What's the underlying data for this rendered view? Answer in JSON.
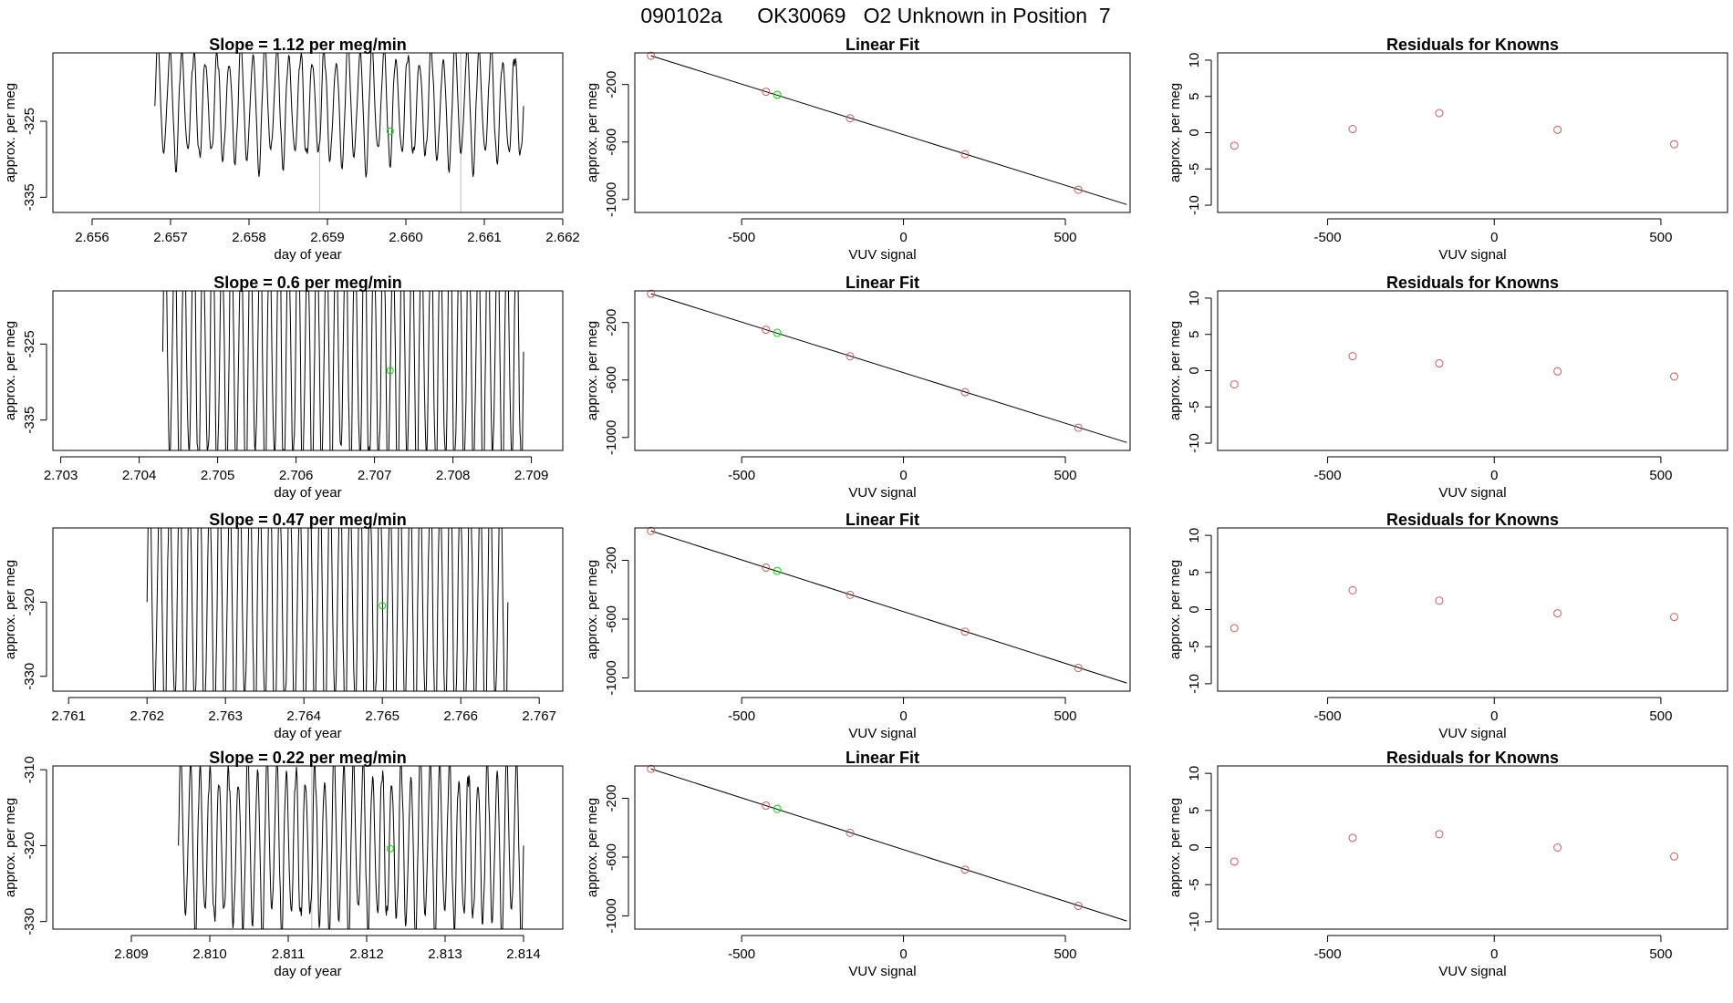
{
  "page_title": "090102a      OK30069   O2 Unknown in Position  7",
  "colors": {
    "line": "#000000",
    "known": "#cd5c5c",
    "unknown": "#00dd00",
    "frame": "#000000"
  },
  "chart_data": [
    {
      "row": 1,
      "ts": {
        "type": "line",
        "title": "Slope =  1.12  per meg/min",
        "xlabel": "day of year",
        "ylabel": "approx. per meg",
        "xlim": [
          2.6555,
          2.662
        ],
        "ylim": [
          -337,
          -316
        ],
        "xticks": [
          "2.656",
          "2.657",
          "2.658",
          "2.659",
          "2.660",
          "2.661",
          "2.662"
        ],
        "xtick_values": [
          2.656,
          2.657,
          2.658,
          2.659,
          2.66,
          2.661,
          2.662
        ],
        "yticks": [
          "-325",
          "-335"
        ],
        "ytick_values": [
          -325,
          -335
        ],
        "x_start": 2.6568,
        "x_end": 2.6615,
        "mean": -323,
        "amp": 9.5,
        "cycles": 31,
        "vlines": [
          2.6589,
          2.6607
        ],
        "unknown_point": [
          2.6598,
          -326.3
        ]
      },
      "fit": {
        "type": "scatter",
        "title": "Linear Fit",
        "xlabel": "VUV signal",
        "ylabel": "approx. per meg",
        "xlim": [
          -830,
          700
        ],
        "ylim": [
          -1090,
          20
        ],
        "xticks": [
          "-500",
          "0",
          "500"
        ],
        "xtick_values": [
          -500,
          0,
          500
        ],
        "yticks": [
          "-200",
          "-600",
          "-1000"
        ],
        "ytick_values": [
          -200,
          -600,
          -1000
        ],
        "fit_line": [
          [
            -780,
            0
          ],
          [
            690,
            -1035
          ]
        ],
        "knowns": [
          [
            -780,
            0
          ],
          [
            -425,
            -250
          ],
          [
            -165,
            -435
          ],
          [
            190,
            -685
          ],
          [
            540,
            -932
          ]
        ],
        "unknown": [
          [
            -390,
            -272
          ]
        ]
      },
      "res": {
        "type": "scatter",
        "title": "Residuals for Knowns",
        "xlabel": "VUV signal",
        "ylabel": "approx. per meg",
        "xlim": [
          -830,
          700
        ],
        "ylim": [
          -11,
          11
        ],
        "xticks": [
          "-500",
          "0",
          "500"
        ],
        "xtick_values": [
          -500,
          0,
          500
        ],
        "yticks": [
          "10",
          "5",
          "0",
          "-5",
          "-10"
        ],
        "ytick_values": [
          10,
          5,
          0,
          -5,
          -10
        ],
        "points": [
          [
            -780,
            -1.8
          ],
          [
            -425,
            0.5
          ],
          [
            -165,
            2.7
          ],
          [
            190,
            0.4
          ],
          [
            540,
            -1.6
          ]
        ]
      }
    },
    {
      "row": 2,
      "ts": {
        "type": "line",
        "title": "Slope =  0.6  per meg/min",
        "xlabel": "day of year",
        "ylabel": "approx. per meg",
        "xlim": [
          2.7029,
          2.7094
        ],
        "ylim": [
          -339,
          -318
        ],
        "xticks": [
          "2.703",
          "2.704",
          "2.705",
          "2.706",
          "2.707",
          "2.708",
          "2.709"
        ],
        "xtick_values": [
          2.703,
          2.704,
          2.705,
          2.706,
          2.707,
          2.708,
          2.709
        ],
        "yticks": [
          "-325",
          "-335"
        ],
        "ytick_values": [
          -325,
          -335
        ],
        "x_start": 2.7043,
        "x_end": 2.7089,
        "mean": -326,
        "amp": 22,
        "cycles": 38,
        "vlines": [],
        "unknown_point": [
          2.7072,
          -328.5
        ]
      },
      "fit": {
        "type": "scatter",
        "title": "Linear Fit",
        "xlabel": "VUV signal",
        "ylabel": "approx. per meg",
        "xlim": [
          -830,
          700
        ],
        "ylim": [
          -1090,
          20
        ],
        "xticks": [
          "-500",
          "0",
          "500"
        ],
        "xtick_values": [
          -500,
          0,
          500
        ],
        "yticks": [
          "-200",
          "-600",
          "-1000"
        ],
        "ytick_values": [
          -200,
          -600,
          -1000
        ],
        "fit_line": [
          [
            -780,
            0
          ],
          [
            690,
            -1035
          ]
        ],
        "knowns": [
          [
            -780,
            0
          ],
          [
            -425,
            -250
          ],
          [
            -165,
            -435
          ],
          [
            190,
            -685
          ],
          [
            540,
            -932
          ]
        ],
        "unknown": [
          [
            -390,
            -272
          ]
        ]
      },
      "res": {
        "type": "scatter",
        "title": "Residuals for Knowns",
        "xlabel": "VUV signal",
        "ylabel": "approx. per meg",
        "xlim": [
          -830,
          700
        ],
        "ylim": [
          -11,
          11
        ],
        "xticks": [
          "-500",
          "0",
          "500"
        ],
        "xtick_values": [
          -500,
          0,
          500
        ],
        "yticks": [
          "10",
          "5",
          "0",
          "-5",
          "-10"
        ],
        "ytick_values": [
          10,
          5,
          0,
          -5,
          -10
        ],
        "points": [
          [
            -780,
            -1.9
          ],
          [
            -425,
            2.0
          ],
          [
            -165,
            1.0
          ],
          [
            190,
            -0.1
          ],
          [
            540,
            -0.8
          ]
        ]
      }
    },
    {
      "row": 3,
      "ts": {
        "type": "line",
        "title": "Slope =  0.47  per meg/min",
        "xlabel": "day of year",
        "ylabel": "approx. per meg",
        "xlim": [
          2.7608,
          2.7673
        ],
        "ylim": [
          -332,
          -310
        ],
        "xticks": [
          "2.761",
          "2.762",
          "2.763",
          "2.764",
          "2.765",
          "2.766",
          "2.767"
        ],
        "xtick_values": [
          2.761,
          2.762,
          2.763,
          2.764,
          2.765,
          2.766,
          2.767
        ],
        "yticks": [
          "-320",
          "-330"
        ],
        "ytick_values": [
          -320,
          -330
        ],
        "x_start": 2.762,
        "x_end": 2.7666,
        "mean": -320,
        "amp": 22,
        "cycles": 36,
        "vlines": [],
        "unknown_point": [
          2.765,
          -320.5
        ]
      },
      "fit": {
        "type": "scatter",
        "title": "Linear Fit",
        "xlabel": "VUV signal",
        "ylabel": "approx. per meg",
        "xlim": [
          -830,
          700
        ],
        "ylim": [
          -1090,
          20
        ],
        "xticks": [
          "-500",
          "0",
          "500"
        ],
        "xtick_values": [
          -500,
          0,
          500
        ],
        "yticks": [
          "-200",
          "-600",
          "-1000"
        ],
        "ytick_values": [
          -200,
          -600,
          -1000
        ],
        "fit_line": [
          [
            -780,
            0
          ],
          [
            690,
            -1035
          ]
        ],
        "knowns": [
          [
            -780,
            0
          ],
          [
            -425,
            -250
          ],
          [
            -165,
            -435
          ],
          [
            190,
            -685
          ],
          [
            540,
            -932
          ]
        ],
        "unknown": [
          [
            -390,
            -272
          ]
        ]
      },
      "res": {
        "type": "scatter",
        "title": "Residuals for Knowns",
        "xlabel": "VUV signal",
        "ylabel": "approx. per meg",
        "xlim": [
          -830,
          700
        ],
        "ylim": [
          -11,
          11
        ],
        "xticks": [
          "-500",
          "0",
          "500"
        ],
        "xtick_values": [
          -500,
          0,
          500
        ],
        "yticks": [
          "10",
          "5",
          "0",
          "-5",
          "-10"
        ],
        "ytick_values": [
          10,
          5,
          0,
          -5,
          -10
        ],
        "points": [
          [
            -780,
            -2.5
          ],
          [
            -425,
            2.6
          ],
          [
            -165,
            1.2
          ],
          [
            190,
            -0.5
          ],
          [
            540,
            -1.0
          ]
        ]
      }
    },
    {
      "row": 4,
      "ts": {
        "type": "line",
        "title": "Slope =  0.22  per meg/min",
        "xlabel": "day of year",
        "ylabel": "approx. per meg",
        "xlim": [
          2.808,
          2.8145
        ],
        "ylim": [
          -331,
          -309.5
        ],
        "xticks": [
          "2.809",
          "2.810",
          "2.811",
          "2.812",
          "2.813",
          "2.814"
        ],
        "xtick_values": [
          2.809,
          2.81,
          2.811,
          2.812,
          2.813,
          2.814
        ],
        "yticks": [
          "-310",
          "-320",
          "-330"
        ],
        "ytick_values": [
          -310,
          -320,
          -330
        ],
        "x_start": 2.8096,
        "x_end": 2.814,
        "mean": -320,
        "amp": 14,
        "cycles": 36,
        "vlines": [
          2.8113
        ],
        "unknown_point": [
          2.8123,
          -320.4
        ]
      },
      "fit": {
        "type": "scatter",
        "title": "Linear Fit",
        "xlabel": "VUV signal",
        "ylabel": "approx. per meg",
        "xlim": [
          -830,
          700
        ],
        "ylim": [
          -1090,
          20
        ],
        "xticks": [
          "-500",
          "0",
          "500"
        ],
        "xtick_values": [
          -500,
          0,
          500
        ],
        "yticks": [
          "-200",
          "-600",
          "-1000"
        ],
        "ytick_values": [
          -200,
          -600,
          -1000
        ],
        "fit_line": [
          [
            -780,
            0
          ],
          [
            690,
            -1035
          ]
        ],
        "knowns": [
          [
            -780,
            0
          ],
          [
            -425,
            -250
          ],
          [
            -165,
            -435
          ],
          [
            190,
            -685
          ],
          [
            540,
            -932
          ]
        ],
        "unknown": [
          [
            -390,
            -272
          ]
        ]
      },
      "res": {
        "type": "scatter",
        "title": "Residuals for Knowns",
        "xlabel": "VUV signal",
        "ylabel": "approx. per meg",
        "xlim": [
          -830,
          700
        ],
        "ylim": [
          -11,
          11
        ],
        "xticks": [
          "-500",
          "0",
          "500"
        ],
        "xtick_values": [
          -500,
          0,
          500
        ],
        "yticks": [
          "10",
          "5",
          "0",
          "-5",
          "-10"
        ],
        "ytick_values": [
          10,
          5,
          0,
          -5,
          -10
        ],
        "points": [
          [
            -780,
            -1.9
          ],
          [
            -425,
            1.3
          ],
          [
            -165,
            1.8
          ],
          [
            190,
            0.0
          ],
          [
            540,
            -1.2
          ]
        ]
      }
    }
  ]
}
